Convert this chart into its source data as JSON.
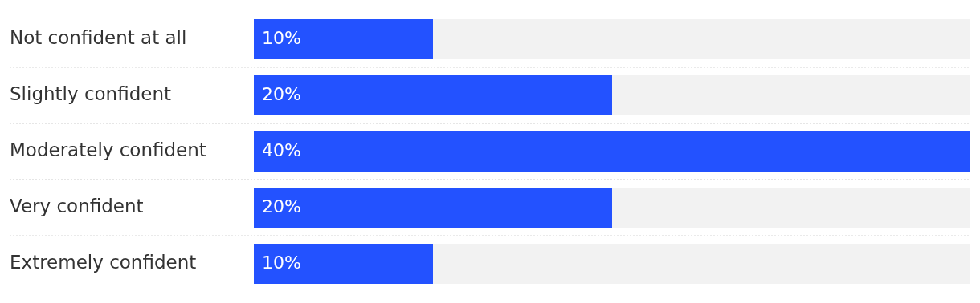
{
  "chart_data": {
    "type": "bar",
    "orientation": "horizontal",
    "categories": [
      "Not confident at all",
      "Slightly confident",
      "Moderately confident",
      "Very confident",
      "Extremely confident"
    ],
    "values": [
      10,
      20,
      40,
      20,
      10
    ],
    "color": "#2352ff",
    "value_labels": [
      "10%",
      "20%",
      "40%",
      "20%",
      "10%"
    ],
    "xlim": [
      0,
      40
    ],
    "tick_labels": "y",
    "grid": false,
    "legend": false
  }
}
